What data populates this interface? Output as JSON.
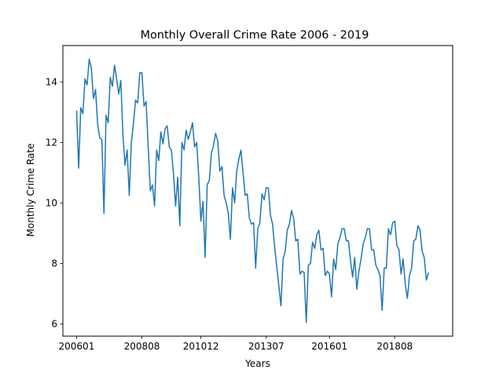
{
  "chart_data": {
    "type": "line",
    "title": "Monthly Overall Crime Rate 2006 - 2019",
    "xlabel": "Years",
    "ylabel": "Monthly Crime Rate",
    "x_tick_labels": [
      "200601",
      "200808",
      "201012",
      "201307",
      "201601",
      "201808"
    ],
    "x_tick_positions": [
      0,
      31,
      59,
      90,
      120,
      151
    ],
    "xlim": [
      -6.5,
      178.5
    ],
    "y_ticks": [
      6,
      8,
      10,
      12,
      14
    ],
    "ylim": [
      5.6,
      15.2
    ],
    "grid": false,
    "legend": "none",
    "series": [
      {
        "color": "#1f77b4",
        "values": [
          13.05,
          11.15,
          13.15,
          12.95,
          14.1,
          13.9,
          14.75,
          14.45,
          13.45,
          13.75,
          12.6,
          12.15,
          12.1,
          9.65,
          12.9,
          12.65,
          14.15,
          13.85,
          14.55,
          14.1,
          13.6,
          14.05,
          12.25,
          11.25,
          11.75,
          10.25,
          12.0,
          12.65,
          13.4,
          13.3,
          14.3,
          14.3,
          13.2,
          13.35,
          11.85,
          10.4,
          10.6,
          9.9,
          11.75,
          11.4,
          12.35,
          11.95,
          12.45,
          12.55,
          11.85,
          11.75,
          10.95,
          9.9,
          10.85,
          9.25,
          12.0,
          11.75,
          12.4,
          12.1,
          12.35,
          12.65,
          11.85,
          12.0,
          10.85,
          9.4,
          10.05,
          8.2,
          10.6,
          10.75,
          11.65,
          11.9,
          12.3,
          12.05,
          11.05,
          11.2,
          10.25,
          10.0,
          9.65,
          8.8,
          10.5,
          10.0,
          11.05,
          11.45,
          11.75,
          11.0,
          10.25,
          10.3,
          9.5,
          9.3,
          9.35,
          7.85,
          9.15,
          9.35,
          10.3,
          10.1,
          10.5,
          10.5,
          9.6,
          9.3,
          8.55,
          7.9,
          7.25,
          6.6,
          8.15,
          8.4,
          9.1,
          9.3,
          9.75,
          9.5,
          8.75,
          8.8,
          7.65,
          7.75,
          7.7,
          6.05,
          7.95,
          8.0,
          8.7,
          8.5,
          8.95,
          9.1,
          8.45,
          8.5,
          7.6,
          7.75,
          7.65,
          6.9,
          8.15,
          7.8,
          8.65,
          8.85,
          9.15,
          9.15,
          8.75,
          8.75,
          8.1,
          7.55,
          8.2,
          7.15,
          7.75,
          8.15,
          8.65,
          8.85,
          9.15,
          9.15,
          8.45,
          8.45,
          7.95,
          7.8,
          7.6,
          6.45,
          7.85,
          7.85,
          9.15,
          8.95,
          9.35,
          9.4,
          8.6,
          8.45,
          7.65,
          8.15,
          7.3,
          6.85,
          7.6,
          7.85,
          8.75,
          8.8,
          9.25,
          9.1,
          8.4,
          8.2,
          7.45,
          7.7
        ]
      }
    ]
  }
}
